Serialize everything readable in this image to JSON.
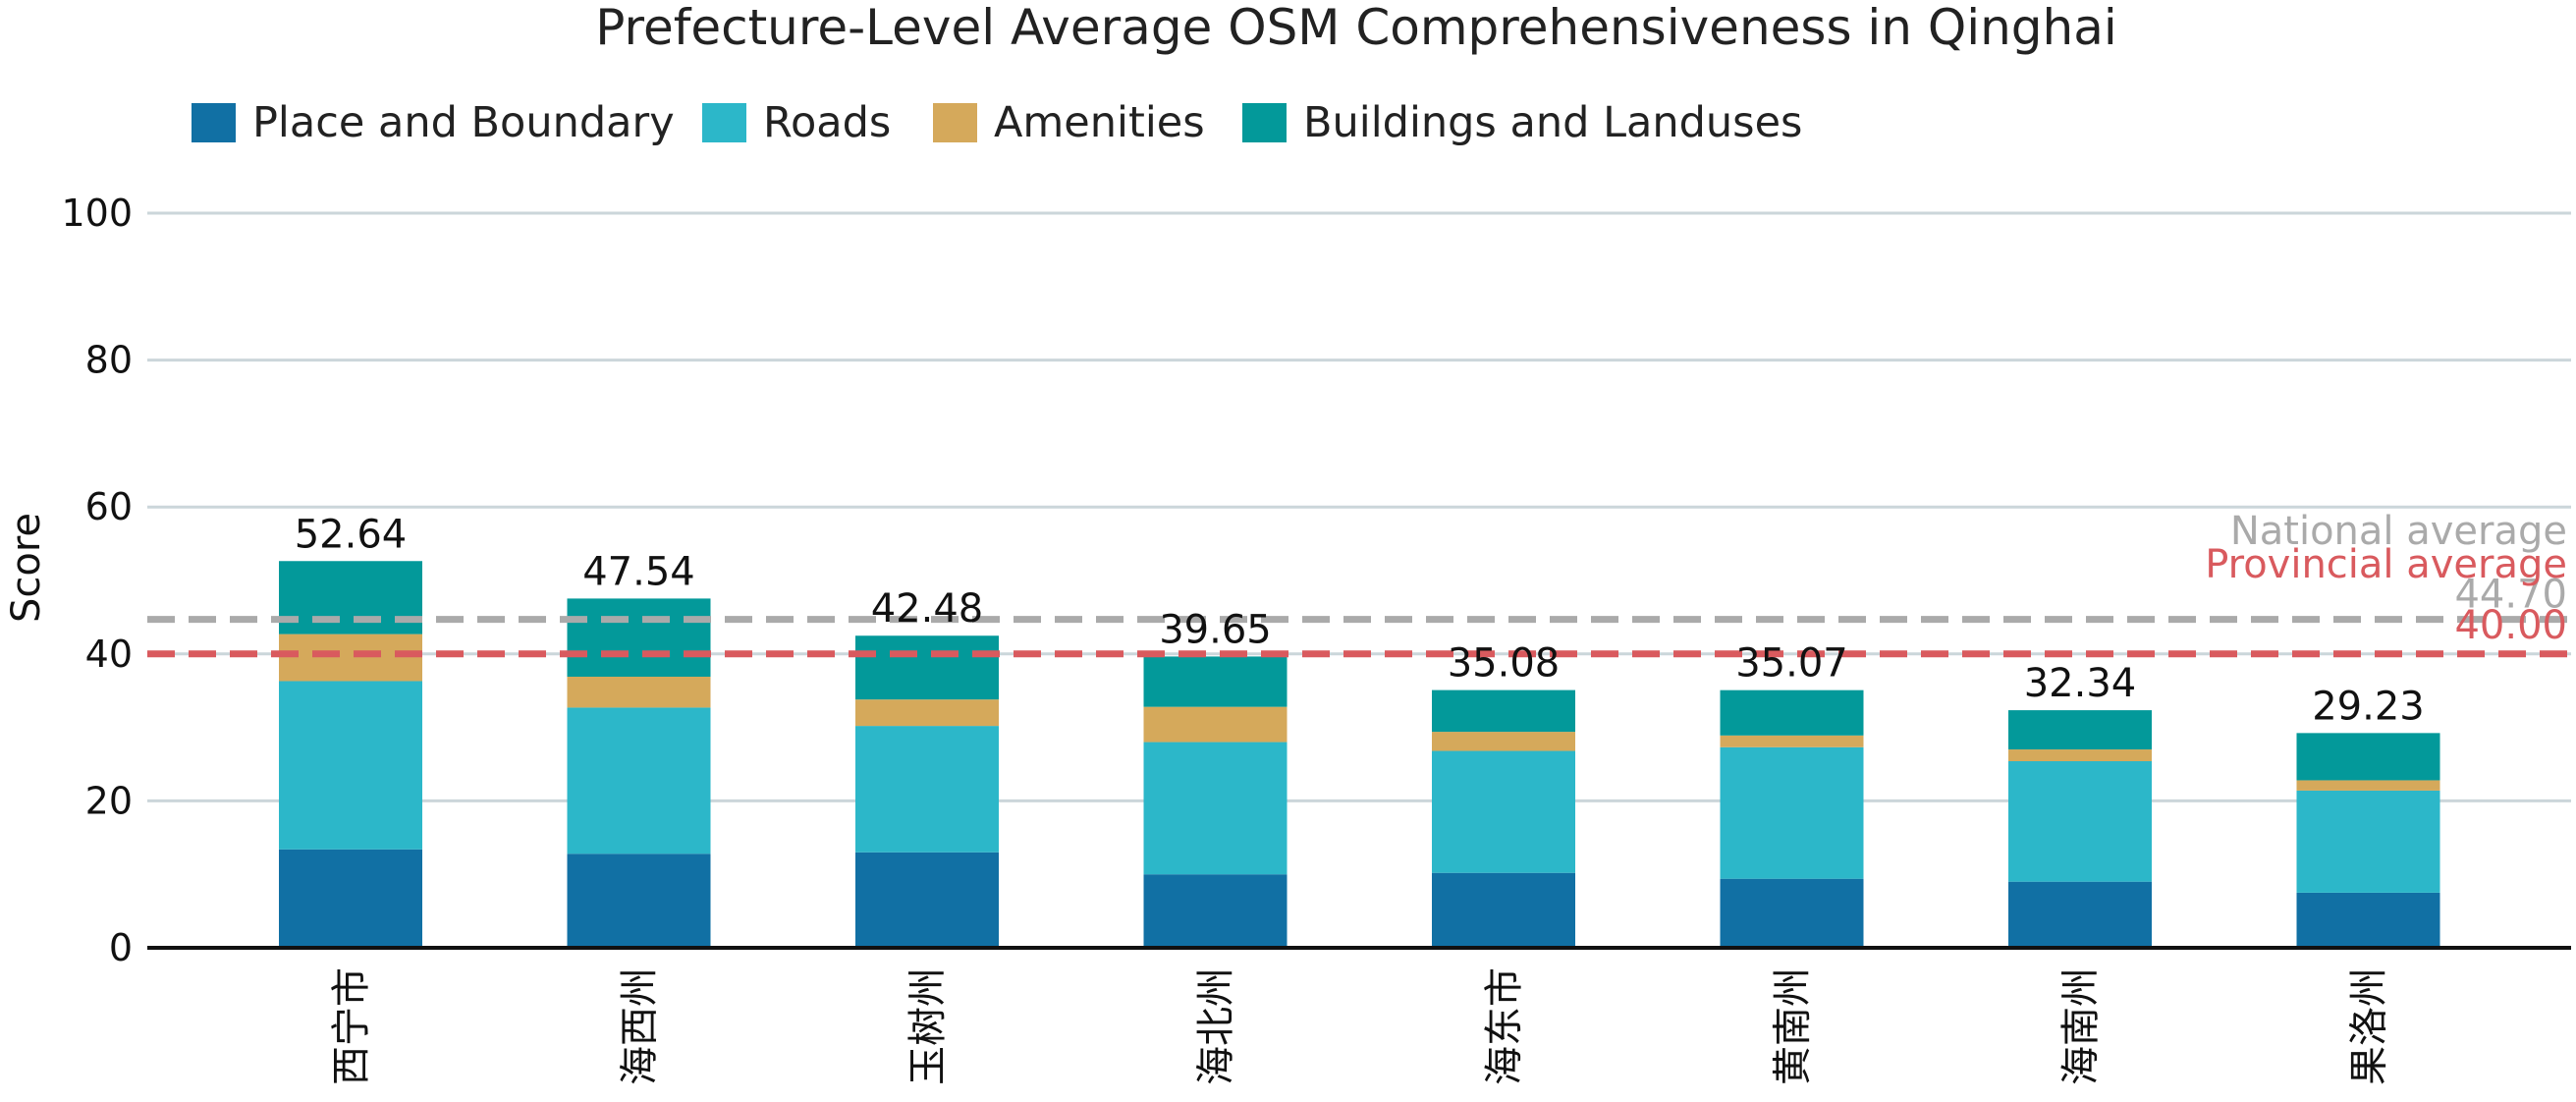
{
  "chart_data": {
    "type": "bar",
    "stacked": true,
    "title": "Prefecture-Level Average OSM Comprehensiveness in Qinghai",
    "xlabel": "",
    "ylabel": "Score",
    "ylim": [
      0,
      100
    ],
    "yticks": [
      "0",
      "20",
      "40",
      "60",
      "80",
      "100"
    ],
    "grid": true,
    "legend_position": "top-left",
    "categories": [
      "西宁市",
      "海西州",
      "玉树州",
      "海北州",
      "海东市",
      "黄南州",
      "海南州",
      "果洛州"
    ],
    "series": [
      {
        "name": "Place and Boundary",
        "color": "#1170a4",
        "values": [
          13.4,
          12.8,
          13.0,
          10.0,
          10.2,
          9.4,
          9.0,
          7.5
        ]
      },
      {
        "name": "Roads",
        "color": "#2cb7c9",
        "values": [
          22.9,
          19.9,
          17.2,
          18.0,
          16.6,
          17.9,
          16.4,
          13.9
        ]
      },
      {
        "name": "Amenities",
        "color": "#d5a95b",
        "values": [
          6.4,
          4.2,
          3.6,
          4.8,
          2.6,
          1.6,
          1.6,
          1.4
        ]
      },
      {
        "name": "Buildings and Landuses",
        "color": "#03999a",
        "values": [
          9.94,
          10.64,
          8.68,
          6.85,
          5.68,
          6.17,
          5.34,
          6.43
        ]
      }
    ],
    "totals": [
      "52.64",
      "47.54",
      "42.48",
      "39.65",
      "35.08",
      "35.07",
      "32.34",
      "29.23"
    ],
    "reference_lines": [
      {
        "label": "National average",
        "value": 44.7,
        "value_label": "44.70",
        "color": "#aaaaaa"
      },
      {
        "label": "Provincial average",
        "value": 40.0,
        "value_label": "40.00",
        "color": "#d95a5e"
      }
    ]
  }
}
